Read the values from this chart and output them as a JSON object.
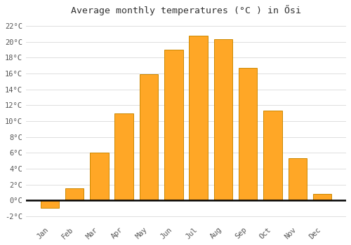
{
  "months": [
    "Jan",
    "Feb",
    "Mar",
    "Apr",
    "May",
    "Jun",
    "Jul",
    "Aug",
    "Sep",
    "Oct",
    "Nov",
    "Dec"
  ],
  "values": [
    -1.0,
    1.5,
    6.0,
    11.0,
    15.9,
    19.0,
    20.8,
    20.3,
    16.7,
    11.3,
    5.3,
    0.8
  ],
  "bar_color": "#FFA726",
  "bar_edge_color": "#CC8800",
  "title": "Average monthly temperatures (°C ) in Ősi",
  "title_fontsize": 9.5,
  "ylim": [
    -2.8,
    23.0
  ],
  "yticks": [
    -2,
    0,
    2,
    4,
    6,
    8,
    10,
    12,
    14,
    16,
    18,
    20,
    22
  ],
  "background_color": "#ffffff",
  "grid_color": "#dddddd",
  "font_family": "monospace",
  "bar_width": 0.75
}
